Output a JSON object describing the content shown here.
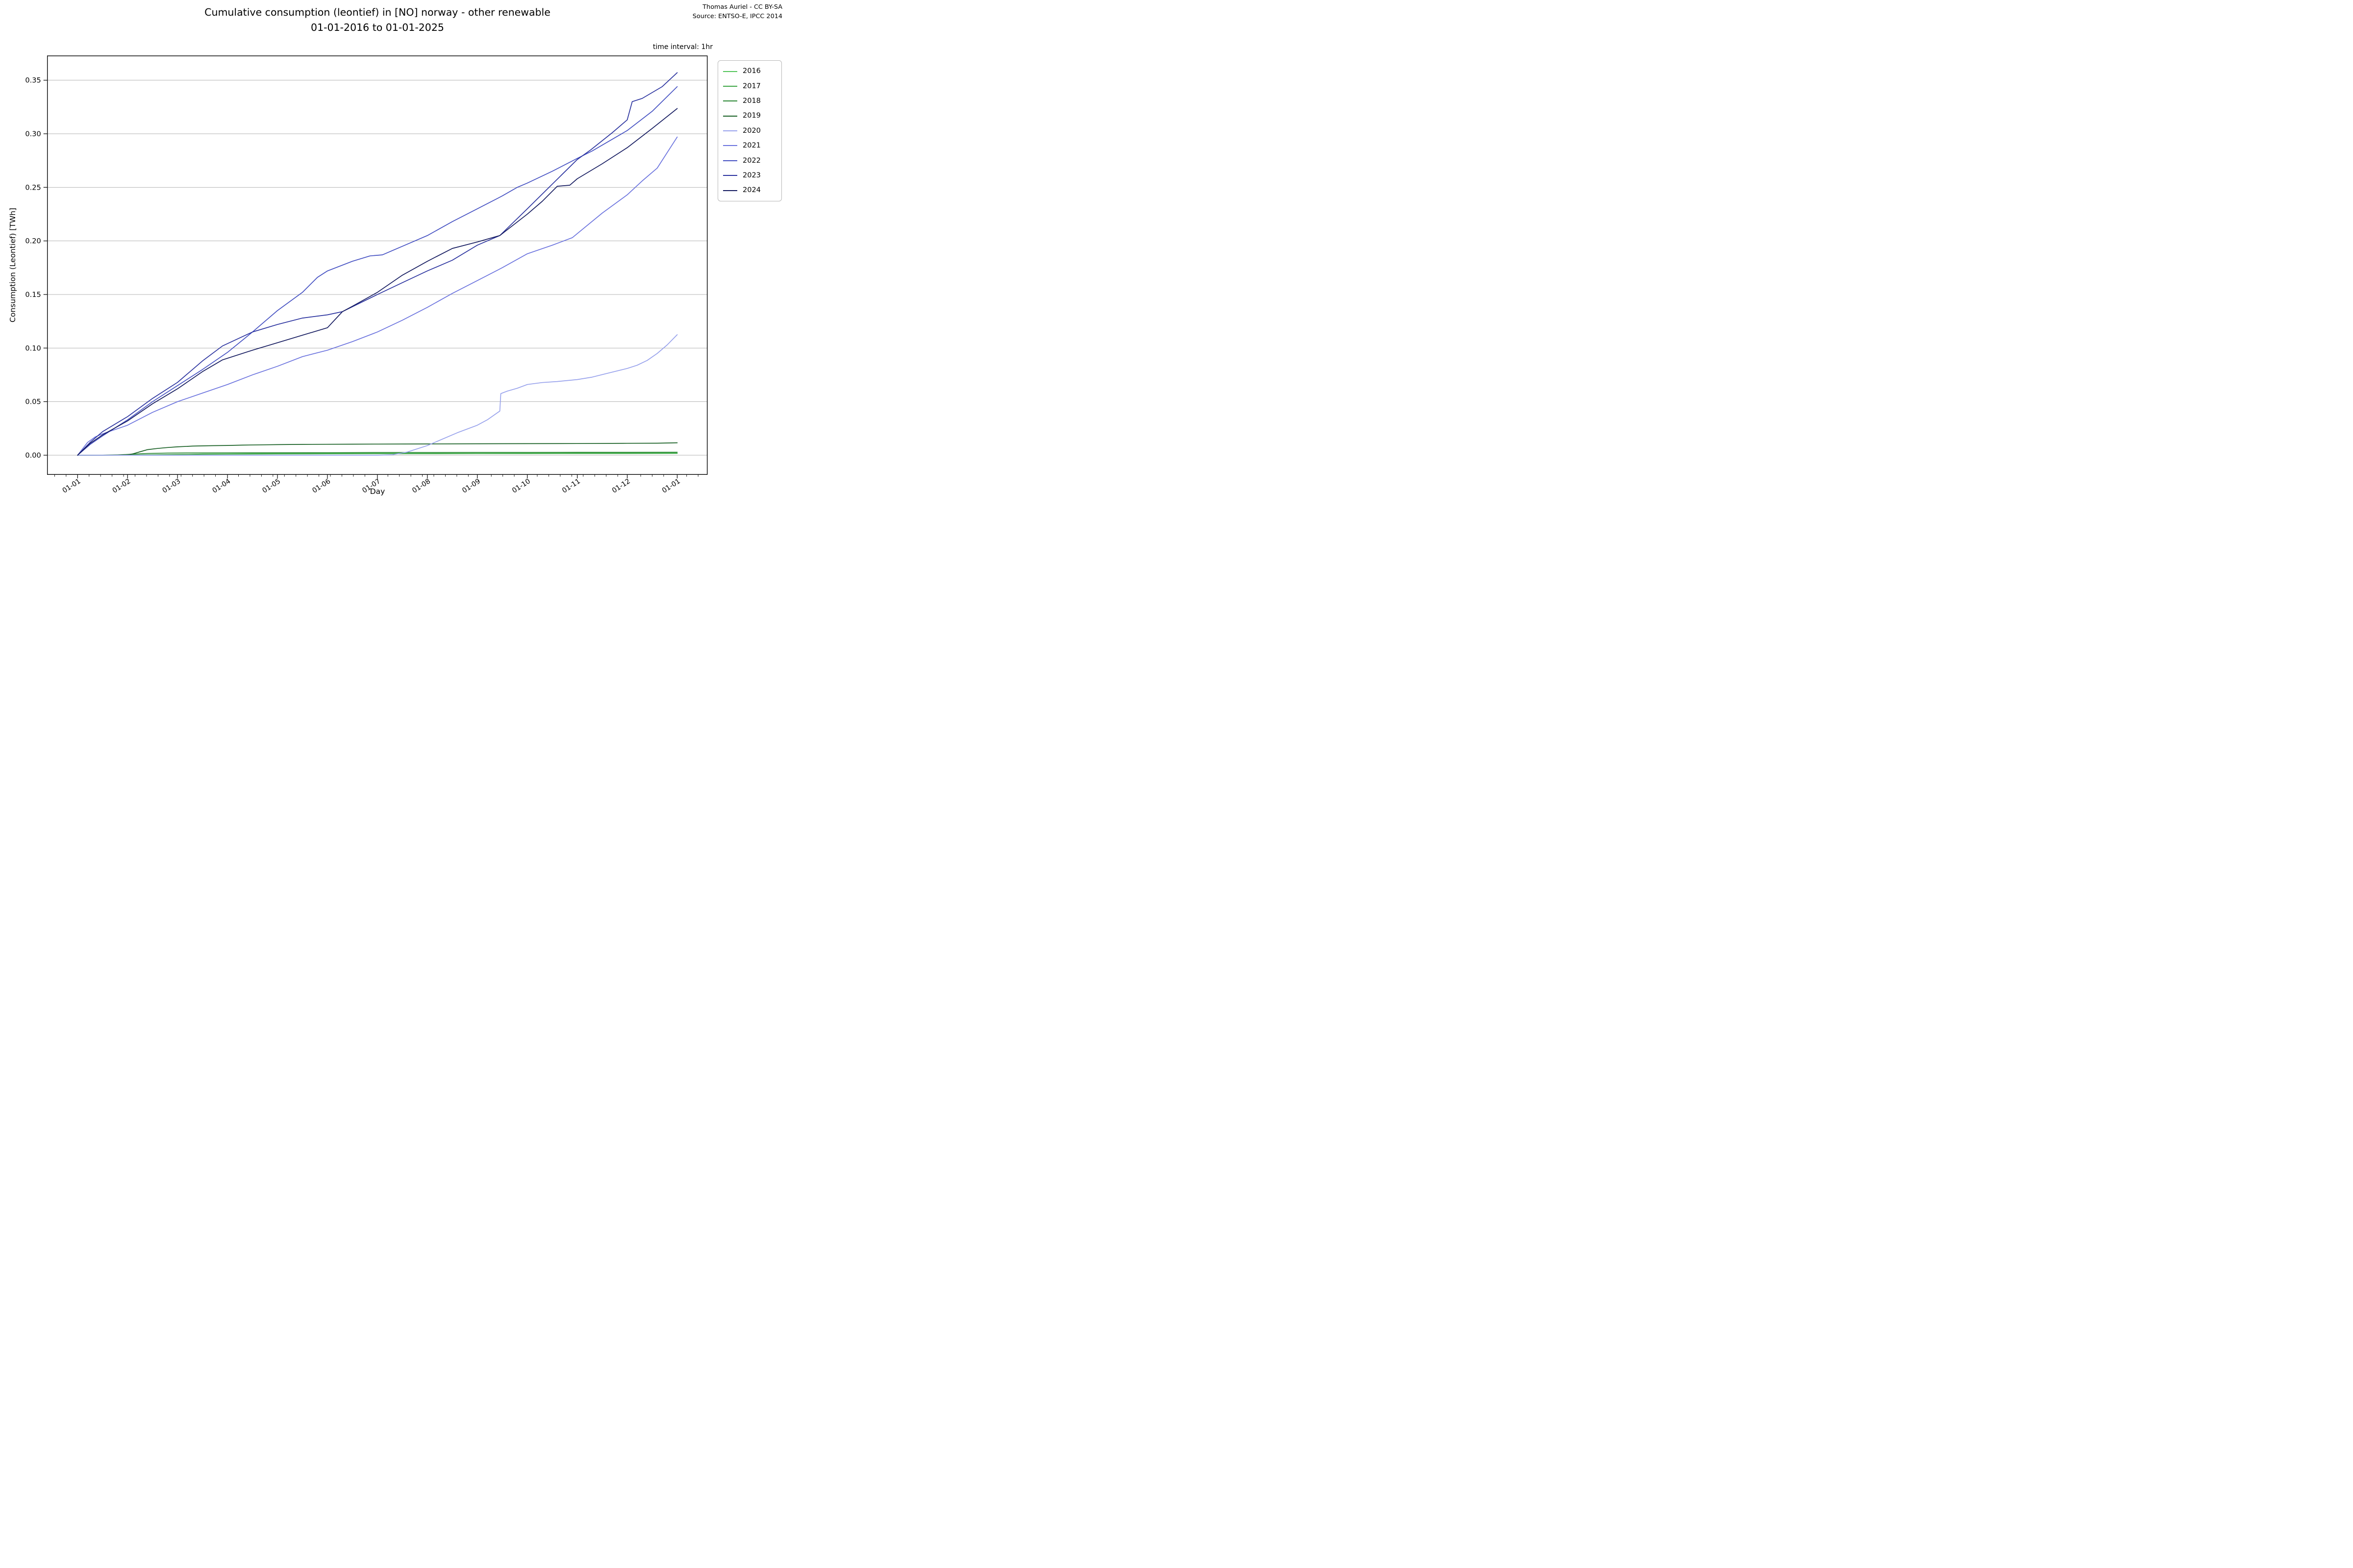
{
  "figure": {
    "title_line1": "Cumulative consumption (leontief) in [NO] norway - other renewable",
    "title_line2": "01-01-2016 to 01-01-2025",
    "attribution_line1": "Thomas Auriel - CC BY-SA",
    "attribution_line2": "Source: ENTSO-E, IPCC 2014",
    "note": "time interval: 1hr"
  },
  "chart_data": {
    "type": "line",
    "title": "Cumulative consumption (leontief) in [NO] norway - other renewable 01-01-2016 to 01-01-2025",
    "xlabel": "Day",
    "ylabel": "Consumption (Leontief) [TWh]",
    "x_unit": "month of year, all years overlaid from 01-01 to next 01-01",
    "x_tick_labels": [
      "01-01",
      "01-02",
      "01-03",
      "01-04",
      "01-05",
      "01-06",
      "01-07",
      "01-08",
      "01-09",
      "01-10",
      "01-11",
      "01-12",
      "01-01"
    ],
    "y_ticks": [
      0.0,
      0.05,
      0.1,
      0.15,
      0.2,
      0.25,
      0.3,
      0.35
    ],
    "y_tick_labels": [
      "0.00",
      "0.05",
      "0.10",
      "0.15",
      "0.20",
      "0.25",
      "0.30",
      "0.35"
    ],
    "ylim": [
      -0.018,
      0.373
    ],
    "xlim_months": [
      -0.6,
      12.6
    ],
    "grid": "horizontal only, light gray",
    "legend_position": "outside upper right",
    "series": [
      {
        "name": "2016",
        "color": "#52c45a",
        "points": [
          [
            0,
            0
          ],
          [
            0.5,
            0.0001
          ],
          [
            1,
            0.0002
          ],
          [
            1.5,
            0.0003
          ],
          [
            2,
            0.0005
          ],
          [
            2.5,
            0.0011
          ],
          [
            3,
            0.0013
          ],
          [
            4,
            0.0015
          ],
          [
            5,
            0.0016
          ],
          [
            6,
            0.0017
          ],
          [
            7,
            0.0017
          ],
          [
            8,
            0.0018
          ],
          [
            9,
            0.0019
          ],
          [
            10,
            0.0019
          ],
          [
            11,
            0.002
          ],
          [
            12,
            0.002
          ]
        ]
      },
      {
        "name": "2017",
        "color": "#3ba544",
        "points": [
          [
            0,
            0
          ],
          [
            0.5,
            0.0001
          ],
          [
            1,
            0.0002
          ],
          [
            1.5,
            0.0004
          ],
          [
            2,
            0.0007
          ],
          [
            2.5,
            0.0009
          ],
          [
            3,
            0.001
          ],
          [
            4,
            0.0012
          ],
          [
            5,
            0.0013
          ],
          [
            6,
            0.0014
          ],
          [
            7,
            0.0014
          ],
          [
            8,
            0.0015
          ],
          [
            9,
            0.0015
          ],
          [
            10,
            0.0016
          ],
          [
            11,
            0.0016
          ],
          [
            12,
            0.0017
          ]
        ]
      },
      {
        "name": "2018",
        "color": "#2a8733",
        "points": [
          [
            0,
            0
          ],
          [
            0.7,
            0.0001
          ],
          [
            0.9,
            0.0005
          ],
          [
            1.1,
            0.001
          ],
          [
            1.4,
            0.0016
          ],
          [
            1.8,
            0.002
          ],
          [
            2.2,
            0.0021
          ],
          [
            3,
            0.0022
          ],
          [
            4,
            0.0023
          ],
          [
            5,
            0.0024
          ],
          [
            6,
            0.0025
          ],
          [
            7,
            0.0025
          ],
          [
            8,
            0.0026
          ],
          [
            9,
            0.0026
          ],
          [
            10,
            0.0027
          ],
          [
            11,
            0.0027
          ],
          [
            12,
            0.0028
          ]
        ]
      },
      {
        "name": "2019",
        "color": "#175f23",
        "points": [
          [
            0,
            0
          ],
          [
            0.5,
            0.0001
          ],
          [
            1,
            0.0004
          ],
          [
            1.1,
            0.0012
          ],
          [
            1.25,
            0.0032
          ],
          [
            1.4,
            0.0052
          ],
          [
            1.6,
            0.0063
          ],
          [
            1.8,
            0.0072
          ],
          [
            2,
            0.0078
          ],
          [
            2.3,
            0.0085
          ],
          [
            2.7,
            0.0089
          ],
          [
            3,
            0.0091
          ],
          [
            3.3,
            0.0094
          ],
          [
            3.7,
            0.0097
          ],
          [
            4,
            0.0099
          ],
          [
            4.5,
            0.0101
          ],
          [
            5,
            0.0102
          ],
          [
            5.5,
            0.0103
          ],
          [
            6,
            0.0104
          ],
          [
            7,
            0.0105
          ],
          [
            8,
            0.0107
          ],
          [
            9,
            0.0108
          ],
          [
            10,
            0.0109
          ],
          [
            11,
            0.0111
          ],
          [
            11.6,
            0.0112
          ],
          [
            12,
            0.0116
          ]
        ]
      },
      {
        "name": "2020",
        "color": "#98a2ec",
        "points": [
          [
            0,
            0
          ],
          [
            1,
            0
          ],
          [
            2,
            0
          ],
          [
            3,
            0
          ],
          [
            4,
            0
          ],
          [
            5,
            0
          ],
          [
            6,
            0
          ],
          [
            6.3,
            0.0004
          ],
          [
            6.6,
            0.003
          ],
          [
            7,
            0.009
          ],
          [
            7.3,
            0.015
          ],
          [
            7.6,
            0.021
          ],
          [
            8,
            0.028
          ],
          [
            8.2,
            0.033
          ],
          [
            8.45,
            0.0412
          ],
          [
            8.47,
            0.0575
          ],
          [
            8.6,
            0.0598
          ],
          [
            8.8,
            0.0625
          ],
          [
            9,
            0.066
          ],
          [
            9.3,
            0.0678
          ],
          [
            9.6,
            0.0688
          ],
          [
            10,
            0.0706
          ],
          [
            10.3,
            0.0729
          ],
          [
            10.6,
            0.0764
          ],
          [
            11,
            0.081
          ],
          [
            11.2,
            0.084
          ],
          [
            11.4,
            0.0885
          ],
          [
            11.6,
            0.095
          ],
          [
            11.8,
            0.103
          ],
          [
            12,
            0.1125
          ]
        ]
      },
      {
        "name": "2021",
        "color": "#6b73de",
        "points": [
          [
            0,
            0
          ],
          [
            0.2,
            0.012
          ],
          [
            0.35,
            0.017
          ],
          [
            0.5,
            0.02
          ],
          [
            1,
            0.028
          ],
          [
            1.5,
            0.04
          ],
          [
            2,
            0.05
          ],
          [
            2.5,
            0.058
          ],
          [
            3,
            0.066
          ],
          [
            3.5,
            0.075
          ],
          [
            4,
            0.083
          ],
          [
            4.5,
            0.092
          ],
          [
            5,
            0.098
          ],
          [
            5.5,
            0.106
          ],
          [
            6,
            0.115
          ],
          [
            6.5,
            0.126
          ],
          [
            7,
            0.138
          ],
          [
            7.5,
            0.151
          ],
          [
            8,
            0.163
          ],
          [
            8.5,
            0.175
          ],
          [
            9,
            0.188
          ],
          [
            9.5,
            0.196
          ],
          [
            9.9,
            0.203
          ],
          [
            10.5,
            0.226
          ],
          [
            11,
            0.243
          ],
          [
            11.3,
            0.256
          ],
          [
            11.6,
            0.268
          ],
          [
            12,
            0.297
          ]
        ]
      },
      {
        "name": "2022",
        "color": "#4450c2",
        "points": [
          [
            0,
            0
          ],
          [
            0.25,
            0.01
          ],
          [
            0.5,
            0.018
          ],
          [
            1,
            0.033
          ],
          [
            1.5,
            0.05
          ],
          [
            2,
            0.065
          ],
          [
            2.5,
            0.08
          ],
          [
            3,
            0.096
          ],
          [
            3.5,
            0.115
          ],
          [
            4,
            0.135
          ],
          [
            4.5,
            0.152
          ],
          [
            4.8,
            0.166
          ],
          [
            5,
            0.172
          ],
          [
            5.5,
            0.181
          ],
          [
            5.85,
            0.186
          ],
          [
            6.1,
            0.187
          ],
          [
            6.5,
            0.195
          ],
          [
            7,
            0.205
          ],
          [
            7.5,
            0.218
          ],
          [
            8,
            0.23
          ],
          [
            8.5,
            0.242
          ],
          [
            8.8,
            0.25
          ],
          [
            9,
            0.254
          ],
          [
            9.5,
            0.265
          ],
          [
            10,
            0.277
          ],
          [
            10.3,
            0.284
          ],
          [
            11,
            0.303
          ],
          [
            11.5,
            0.321
          ],
          [
            12,
            0.344
          ]
        ]
      },
      {
        "name": "2023",
        "color": "#2b339f",
        "points": [
          [
            0,
            0
          ],
          [
            0.25,
            0.012
          ],
          [
            0.5,
            0.022
          ],
          [
            1,
            0.036
          ],
          [
            1.5,
            0.053
          ],
          [
            2,
            0.068
          ],
          [
            2.5,
            0.088
          ],
          [
            2.9,
            0.102
          ],
          [
            3.5,
            0.115
          ],
          [
            4,
            0.122
          ],
          [
            4.5,
            0.128
          ],
          [
            5,
            0.131
          ],
          [
            5.3,
            0.134
          ],
          [
            6,
            0.15
          ],
          [
            6.5,
            0.161
          ],
          [
            7,
            0.172
          ],
          [
            7.5,
            0.182
          ],
          [
            8,
            0.196
          ],
          [
            8.45,
            0.205
          ],
          [
            9,
            0.23
          ],
          [
            9.5,
            0.253
          ],
          [
            10,
            0.276
          ],
          [
            10.27,
            0.285
          ],
          [
            10.7,
            0.301
          ],
          [
            11,
            0.313
          ],
          [
            11.1,
            0.33
          ],
          [
            11.3,
            0.333
          ],
          [
            11.7,
            0.344
          ],
          [
            12,
            0.357
          ]
        ]
      },
      {
        "name": "2024",
        "color": "#141a5f",
        "points": [
          [
            0,
            0
          ],
          [
            0.25,
            0.011
          ],
          [
            0.5,
            0.019
          ],
          [
            1,
            0.032
          ],
          [
            1.5,
            0.048
          ],
          [
            2,
            0.062
          ],
          [
            2.5,
            0.078
          ],
          [
            2.9,
            0.089
          ],
          [
            3.5,
            0.098
          ],
          [
            4,
            0.105
          ],
          [
            4.5,
            0.112
          ],
          [
            5,
            0.119
          ],
          [
            5.3,
            0.134
          ],
          [
            5.5,
            0.139
          ],
          [
            6,
            0.152
          ],
          [
            6.5,
            0.168
          ],
          [
            7,
            0.181
          ],
          [
            7.5,
            0.193
          ],
          [
            8,
            0.199
          ],
          [
            8.45,
            0.205
          ],
          [
            9,
            0.225
          ],
          [
            9.3,
            0.237
          ],
          [
            9.6,
            0.251
          ],
          [
            9.85,
            0.252
          ],
          [
            10,
            0.258
          ],
          [
            10.5,
            0.272
          ],
          [
            11,
            0.287
          ],
          [
            11.5,
            0.305
          ],
          [
            12,
            0.3236
          ]
        ]
      }
    ]
  }
}
